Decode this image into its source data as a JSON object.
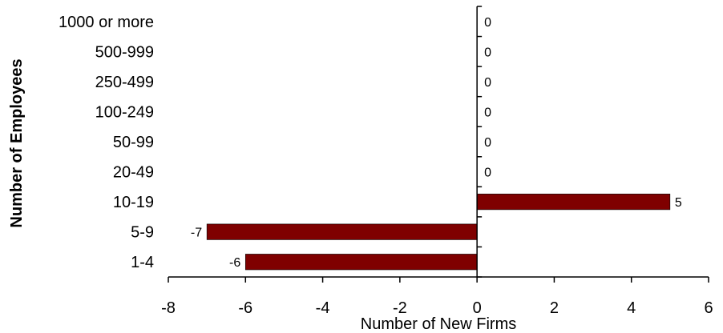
{
  "chart_data": {
    "type": "bar",
    "orientation": "horizontal",
    "categories": [
      "1-4",
      "5-9",
      "10-19",
      "20-49",
      "50-99",
      "100-249",
      "250-499",
      "500-999",
      "1000 or more"
    ],
    "values": [
      -6,
      -7,
      5,
      0,
      0,
      0,
      0,
      0,
      0
    ],
    "data_labels": [
      "-6",
      "-7",
      "5",
      "0",
      "0",
      "0",
      "0",
      "0",
      "0"
    ],
    "xlabel": "Number of New Firms",
    "ylabel": "Number of Employees",
    "xlim": [
      -8,
      6
    ],
    "xticks": [
      -8,
      -6,
      -4,
      -2,
      0,
      2,
      4,
      6
    ],
    "xtick_labels": [
      "-8",
      "-6",
      "-4",
      "-2",
      "0",
      "2",
      "4",
      "6"
    ],
    "grid": false,
    "legend": "none",
    "bar_color": "#7f0000"
  }
}
